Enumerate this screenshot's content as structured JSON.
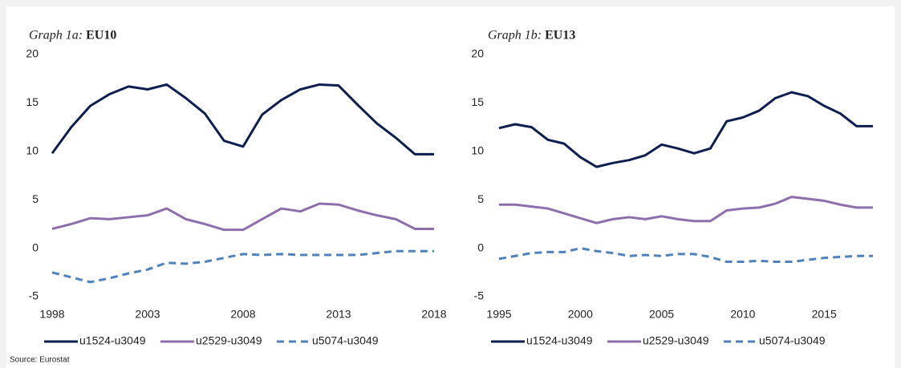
{
  "source": "Source: Eurostat",
  "chart_data": [
    {
      "type": "line",
      "title": [
        "Graph 1a:",
        "EU10"
      ],
      "x": [
        1998,
        1999,
        2000,
        2001,
        2002,
        2003,
        2004,
        2005,
        2006,
        2007,
        2008,
        2009,
        2010,
        2011,
        2012,
        2013,
        2014,
        2015,
        2016,
        2017,
        2018
      ],
      "xlim": [
        1998,
        2018
      ],
      "xticks": [
        1998,
        2003,
        2008,
        2013,
        2018
      ],
      "ylim": [
        -5,
        20
      ],
      "yticks": [
        -5,
        0,
        5,
        10,
        15,
        20
      ],
      "series": [
        {
          "name": "u1524-u3049",
          "color": "#0e1f4f",
          "style": "solid",
          "values": [
            9.8,
            12.5,
            14.7,
            15.9,
            16.7,
            16.4,
            16.9,
            15.5,
            13.9,
            11.1,
            10.5,
            13.8,
            15.3,
            16.4,
            16.9,
            16.8,
            14.8,
            12.9,
            11.4,
            9.7,
            9.7
          ]
        },
        {
          "name": "u2529-u3049",
          "color": "#8e6fad",
          "style": "solid",
          "values": [
            2.0,
            2.5,
            3.1,
            3.0,
            3.2,
            3.4,
            4.1,
            3.0,
            2.5,
            1.9,
            1.9,
            3.0,
            4.1,
            3.8,
            4.6,
            4.5,
            3.9,
            3.4,
            3.0,
            2.0,
            2.0
          ]
        },
        {
          "name": "u5074-u3049",
          "color": "#4f81bd",
          "style": "dashed",
          "values": [
            -2.5,
            -3.0,
            -3.5,
            -3.1,
            -2.6,
            -2.2,
            -1.5,
            -1.6,
            -1.4,
            -1.0,
            -0.6,
            -0.7,
            -0.6,
            -0.7,
            -0.7,
            -0.7,
            -0.7,
            -0.5,
            -0.3,
            -0.3,
            -0.3
          ]
        }
      ]
    },
    {
      "type": "line",
      "title": [
        "Graph 1b:",
        "EU13"
      ],
      "x": [
        1995,
        1996,
        1997,
        1998,
        1999,
        2000,
        2001,
        2002,
        2003,
        2004,
        2005,
        2006,
        2007,
        2008,
        2009,
        2010,
        2011,
        2012,
        2013,
        2014,
        2015,
        2016,
        2017,
        2018
      ],
      "xlim": [
        1995,
        2018
      ],
      "xticks": [
        1995,
        2000,
        2005,
        2010,
        2015
      ],
      "ylim": [
        -5,
        20
      ],
      "yticks": [
        -5,
        0,
        5,
        10,
        15,
        20
      ],
      "series": [
        {
          "name": "u1524-u3049",
          "color": "#0e1f4f",
          "style": "solid",
          "values": [
            12.4,
            12.8,
            12.5,
            11.2,
            10.8,
            9.4,
            8.4,
            8.8,
            9.1,
            9.6,
            10.7,
            10.3,
            9.8,
            10.3,
            13.1,
            13.5,
            14.2,
            15.5,
            16.1,
            15.7,
            14.7,
            13.9,
            12.6,
            12.6
          ]
        },
        {
          "name": "u2529-u3049",
          "color": "#8e6fad",
          "style": "solid",
          "values": [
            4.5,
            4.5,
            4.3,
            4.1,
            3.6,
            3.1,
            2.6,
            3.0,
            3.2,
            3.0,
            3.3,
            3.0,
            2.8,
            2.8,
            3.9,
            4.1,
            4.2,
            4.6,
            5.3,
            5.1,
            4.9,
            4.5,
            4.2,
            4.2
          ]
        },
        {
          "name": "u5074-u3049",
          "color": "#4f81bd",
          "style": "dashed",
          "values": [
            -1.1,
            -0.8,
            -0.5,
            -0.4,
            -0.4,
            0.0,
            -0.3,
            -0.5,
            -0.8,
            -0.7,
            -0.8,
            -0.6,
            -0.6,
            -0.9,
            -1.4,
            -1.4,
            -1.3,
            -1.4,
            -1.4,
            -1.2,
            -1.0,
            -0.9,
            -0.8,
            -0.8
          ]
        }
      ]
    }
  ]
}
